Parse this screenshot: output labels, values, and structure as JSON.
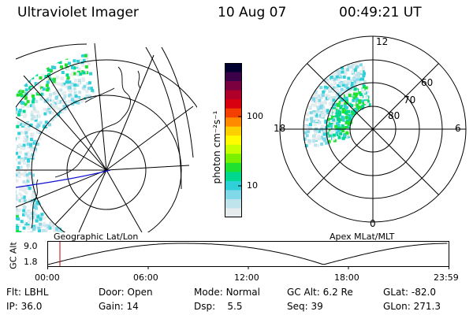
{
  "header": {
    "instrument": "Ultraviolet Imager",
    "date": "10 Aug 07",
    "time": "00:49:21 UT"
  },
  "geo_panel": {
    "label": "Geographic Lat/Lon"
  },
  "apex_panel": {
    "label": "Apex MLat/MLT",
    "mlt_labels": [
      "12",
      "18",
      "6",
      "0"
    ],
    "lat_labels": [
      "60",
      "70",
      "80"
    ]
  },
  "colorbar": {
    "unit_label": "photon cm⁻²s⁻¹",
    "ticks": [
      "100",
      "10"
    ],
    "colors": [
      "#000030",
      "#3a0048",
      "#7a0040",
      "#b0002a",
      "#d80010",
      "#f34000",
      "#ff8a00",
      "#ffd000",
      "#fffc00",
      "#c8ff00",
      "#78f000",
      "#20e030",
      "#00d890",
      "#30d0d8",
      "#80d8e8",
      "#c0e4ec",
      "#e6ecee"
    ]
  },
  "altitude_plot": {
    "ylabel": "GC Alt",
    "yticks": [
      "9.0",
      "1.8"
    ],
    "xticks": [
      "00:00",
      "06:00",
      "12:00",
      "18:00",
      "23:59"
    ],
    "current_time_marker": "00:49"
  },
  "footer": {
    "rows": [
      [
        {
          "k": "Flt:",
          "v": "LBHL"
        },
        {
          "k": "Door:",
          "v": "Open"
        },
        {
          "k": "Mode:",
          "v": "Normal"
        },
        {
          "k": "GC Alt:",
          "v": "6.2 Re"
        },
        {
          "k": "GLat:",
          "v": "-82.0"
        }
      ],
      [
        {
          "k": "IP:",
          "v": "36.0"
        },
        {
          "k": "Gain:",
          "v": "14"
        },
        {
          "k": "Dsp:",
          "v": "5.5"
        },
        {
          "k": "Seq:",
          "v": "39"
        },
        {
          "k": "GLon:",
          "v": "271.3"
        }
      ]
    ]
  }
}
